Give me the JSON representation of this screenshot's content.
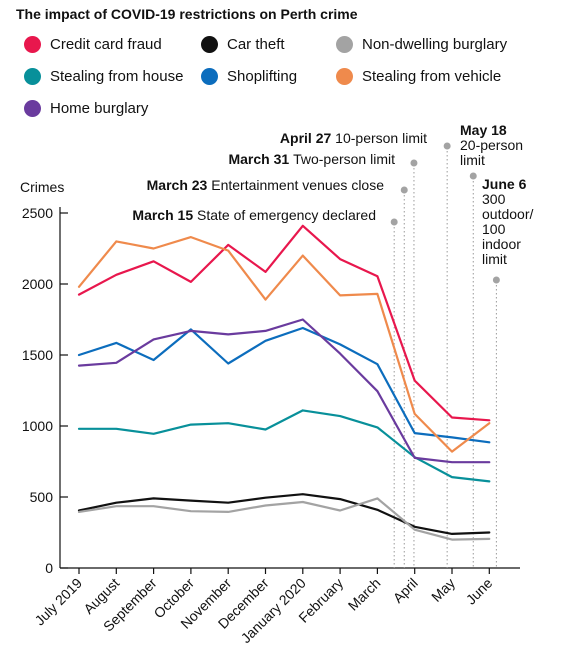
{
  "chart_data": {
    "type": "line",
    "title": "The impact of COVID-19 restrictions on Perth crime",
    "ylabel": "Crimes",
    "xlabel": "",
    "ylim": [
      0,
      2500
    ],
    "yticks": [
      0,
      500,
      1000,
      1500,
      2000,
      2500
    ],
    "grid": false,
    "legend_position": "top",
    "categories": [
      "July 2019",
      "August",
      "September",
      "October",
      "November",
      "December",
      "January 2020",
      "February",
      "March",
      "April",
      "May",
      "June"
    ],
    "series": [
      {
        "name": "Credit card fraud",
        "color": "#e8174d",
        "values": [
          1925,
          2065,
          2160,
          2015,
          2275,
          2085,
          2410,
          2175,
          2055,
          1320,
          1060,
          1040
        ]
      },
      {
        "name": "Car theft",
        "color": "#111111",
        "values": [
          405,
          460,
          490,
          475,
          460,
          495,
          520,
          485,
          410,
          290,
          240,
          250
        ]
      },
      {
        "name": "Non-dwelling burglary",
        "color": "#a3a3a3",
        "values": [
          395,
          435,
          435,
          400,
          395,
          440,
          465,
          405,
          490,
          270,
          200,
          205
        ]
      },
      {
        "name": "Stealing from house",
        "color": "#08909a",
        "values": [
          980,
          980,
          945,
          1010,
          1020,
          975,
          1110,
          1070,
          990,
          780,
          640,
          610
        ]
      },
      {
        "name": "Shoplifting",
        "color": "#0c6dbd",
        "values": [
          1500,
          1585,
          1465,
          1680,
          1440,
          1600,
          1690,
          1575,
          1435,
          950,
          920,
          885
        ]
      },
      {
        "name": "Stealing from vehicle",
        "color": "#ef8a4c",
        "values": [
          1980,
          2300,
          2250,
          2330,
          2235,
          1890,
          2200,
          1920,
          1930,
          1085,
          820,
          1020
        ]
      },
      {
        "name": "Home burglary",
        "color": "#6a3b9e",
        "values": [
          1425,
          1445,
          1610,
          1670,
          1645,
          1670,
          1750,
          1510,
          1245,
          775,
          745,
          745
        ]
      }
    ],
    "annotations": [
      {
        "date_bold": "March 15",
        "text": "State of emergency declared",
        "month_fraction": 8.45
      },
      {
        "date_bold": "March 23",
        "text": "Entertainment venues close",
        "month_fraction": 8.72
      },
      {
        "date_bold": "March 31",
        "text": "Two-person limit",
        "month_fraction": 8.98
      },
      {
        "date_bold": "April 27",
        "text": "10-person limit",
        "month_fraction": 9.87
      },
      {
        "date_bold": "May 18",
        "text": "20-person limit",
        "month_fraction": 10.57
      },
      {
        "date_bold": "June 6",
        "text": "300 outdoor/ 100 indoor limit",
        "month_fraction": 11.19
      }
    ]
  }
}
